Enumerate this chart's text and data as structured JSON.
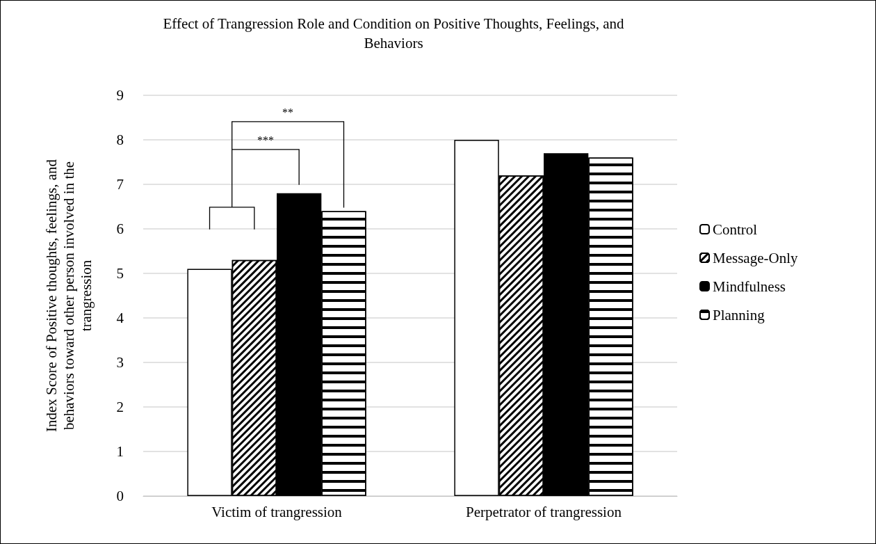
{
  "chart_data": {
    "type": "bar",
    "title": "Effect of Trangression Role and Condition on Positive Thoughts, Feelings, and Behaviors",
    "ylabel": "Index Score of Positive thoughts, feelings, and behaviors toward other person involved in the trangression",
    "categories": [
      "Victim of trangression",
      "Perpetrator of trangression"
    ],
    "series": [
      {
        "name": "Control",
        "color": "#ffffff",
        "values": [
          5.1,
          8.0
        ]
      },
      {
        "name": "Message-Only",
        "color": "#000000",
        "values": [
          5.3,
          7.2
        ]
      },
      {
        "name": "Mindfulness",
        "color": "#000000",
        "values": [
          6.8,
          7.7
        ]
      },
      {
        "name": "Planning",
        "color": "#000000",
        "values": [
          6.4,
          7.6
        ]
      }
    ],
    "ylim": [
      0,
      9
    ],
    "yticks": [
      0,
      1,
      2,
      3,
      4,
      5,
      6,
      7,
      8,
      9
    ],
    "grid": "y",
    "legend": "right",
    "annotations": [
      "***",
      "**"
    ]
  }
}
